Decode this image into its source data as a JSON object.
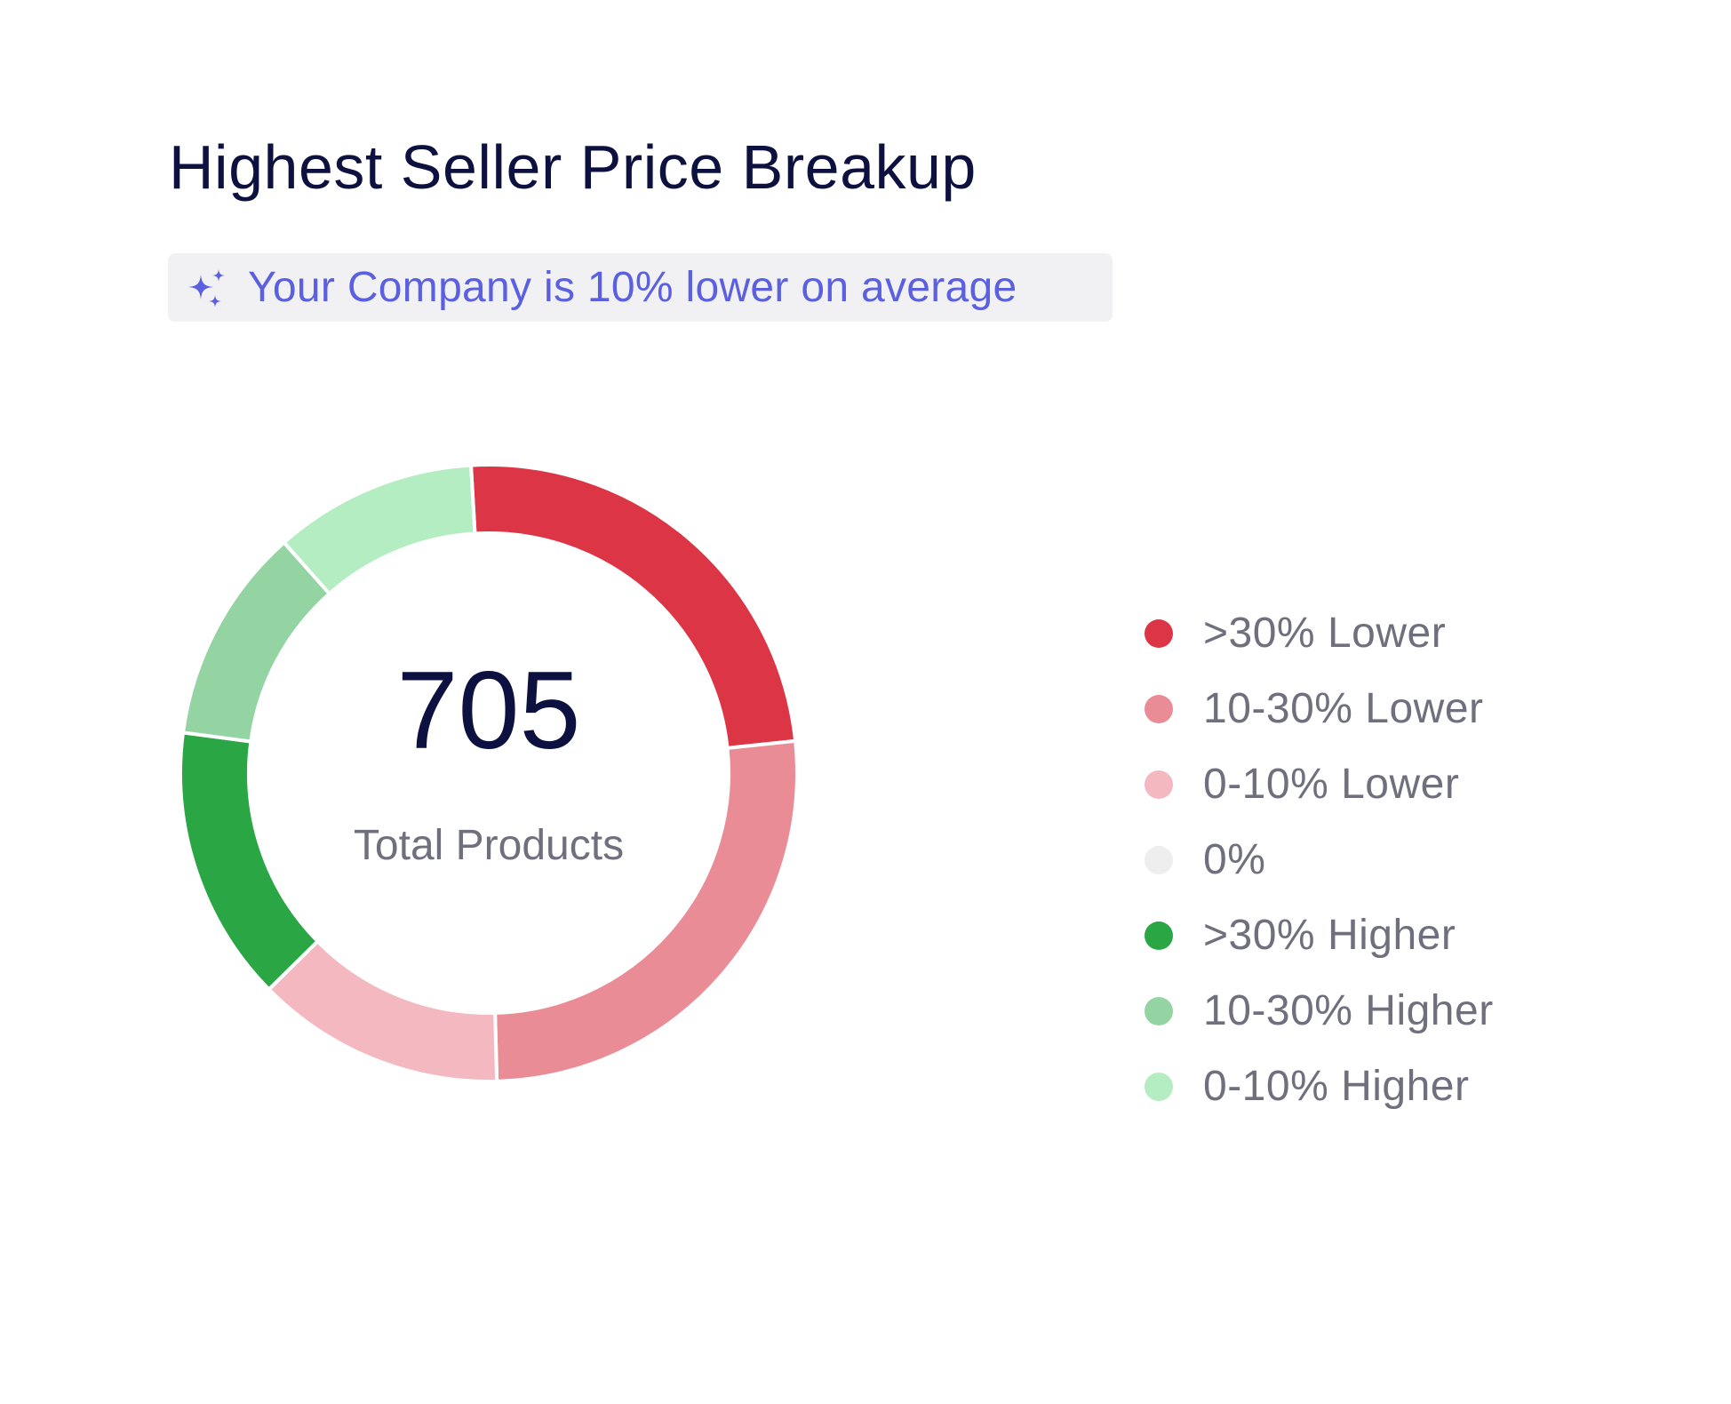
{
  "title": "Highest Seller Price Breakup",
  "insight": {
    "text": "Your Company is 10% lower on average",
    "icon": "sparkles-icon",
    "color": "#5a60e0"
  },
  "center": {
    "value": "705",
    "label": "Total Products"
  },
  "chart_data": {
    "type": "pie",
    "variant": "donut",
    "title": "Highest Seller Price Breakup",
    "total": 705,
    "categories": [
      ">30% Lower",
      "10-30% Lower",
      "0-10% Lower",
      "0%",
      ">30% Higher",
      "10-30% Higher",
      "0-10% Higher"
    ],
    "values": [
      171,
      185,
      92,
      0,
      102,
      80,
      75
    ],
    "colors": [
      "#dc3545",
      "#ea8c95",
      "#f4b9c0",
      "#eeeeee",
      "#2aa744",
      "#94d4a2",
      "#b3edc1"
    ],
    "legend_position": "right"
  }
}
